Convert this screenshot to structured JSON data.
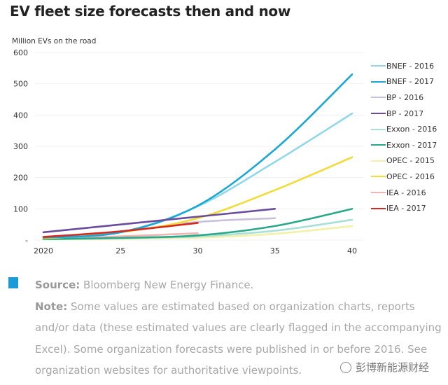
{
  "title": "EV fleet size forecasts then and now",
  "footer": {
    "source_label": "Source:",
    "source_text": "Bloomberg New Energy Finance.",
    "note_label": "Note:",
    "note_text": "Some values are estimated based on organization charts, reports and/or data (these estimated values are clearly flagged in the accompanying Excel). Some organization forecasts were published in or before 2016. See organization websites for authoritative viewpoints.",
    "marker_color": "#1a9ad6"
  },
  "watermark": {
    "icon": "wechat-icon",
    "text": "彭博新能源财经"
  },
  "chart_data": {
    "type": "line",
    "title": "EV fleet size forecasts then and now",
    "ylabel": "Million EVs on the road",
    "xlabel": "",
    "x": [
      2020,
      2025,
      2030,
      2035,
      2040
    ],
    "xtick_labels": [
      "2020",
      "25",
      "30",
      "35",
      "40"
    ],
    "ytick_values": [
      0,
      100,
      200,
      300,
      400,
      500,
      600
    ],
    "ytick_labels": [
      "-",
      "100",
      "200",
      "300",
      "400",
      "500",
      "600"
    ],
    "ylim": [
      0,
      600
    ],
    "xlim": [
      2020,
      2040
    ],
    "grid": true,
    "legend_position": "right",
    "series": [
      {
        "name": "BNEF - 2016",
        "color": "#8fd8ea",
        "values": [
          8,
          25,
          108,
          250,
          405
        ]
      },
      {
        "name": "BNEF - 2017",
        "color": "#1aa7d4",
        "values": [
          8,
          25,
          110,
          290,
          530
        ]
      },
      {
        "name": "BP - 2016",
        "color": "#c9c0dc",
        "values": [
          10,
          28,
          58,
          70,
          null
        ]
      },
      {
        "name": "BP - 2017",
        "color": "#6a4c9c",
        "values": [
          25,
          50,
          75,
          100,
          null
        ]
      },
      {
        "name": "Exxon - 2016",
        "color": "#a8e0d8",
        "values": [
          3,
          6,
          12,
          30,
          65
        ]
      },
      {
        "name": "Exxon - 2017",
        "color": "#2aa88a",
        "values": [
          3,
          7,
          15,
          45,
          100
        ]
      },
      {
        "name": "OPEC - 2015",
        "color": "#f3f0a8",
        "values": [
          2,
          4,
          8,
          20,
          45
        ]
      },
      {
        "name": "OPEC - 2016",
        "color": "#f2dc3a",
        "values": [
          5,
          25,
          70,
          160,
          265
        ]
      },
      {
        "name": "IEA - 2016",
        "color": "#f2b4b0",
        "values": [
          5,
          12,
          22,
          null,
          null
        ]
      },
      {
        "name": "IEA - 2017",
        "color": "#d8271c",
        "values": [
          10,
          28,
          55,
          null,
          null
        ]
      }
    ]
  }
}
